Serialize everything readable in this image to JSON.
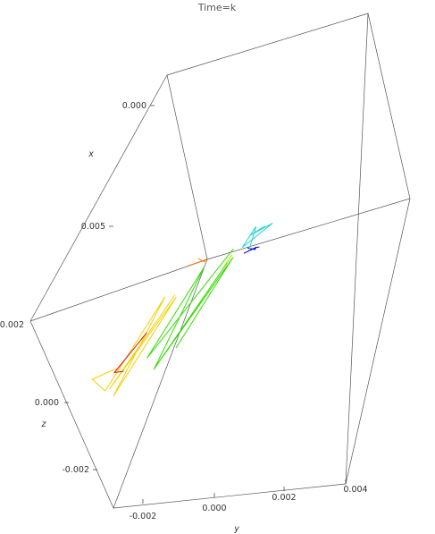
{
  "chart_data": {
    "type": "line",
    "title": "Time=k",
    "axes": {
      "x": {
        "label": "x",
        "ticks": [
          "0.000",
          "0.005"
        ]
      },
      "y": {
        "label": "y",
        "ticks": [
          "-0.002",
          "0.000",
          "0.002",
          "0.004"
        ]
      },
      "z": {
        "label": "z",
        "ticks": [
          "0.002",
          "0.000",
          "-0.002"
        ]
      }
    },
    "grid": false,
    "legend": "none",
    "colors": [
      "#0000cc",
      "#1f6fe0",
      "#22d4d4",
      "#00e070",
      "#33dd00",
      "#aadd00",
      "#f0d000",
      "#ff7a00",
      "#e01010"
    ],
    "series": [
      {
        "color": "#0000cc",
        "points": [
          [
            0.004,
            0.002,
            0.0
          ],
          [
            0.0042,
            0.0022,
            0.0001
          ],
          [
            0.0038,
            0.0021,
            0.0002
          ],
          [
            0.0041,
            0.0019,
            0.0001
          ],
          [
            0.0043,
            0.0023,
            0.0
          ],
          [
            0.0039,
            0.0022,
            0.0002
          ]
        ]
      },
      {
        "color": "#22d4d4",
        "points": [
          [
            0.002,
            0.0018,
            0.0003
          ],
          [
            0.0025,
            0.0016,
            0.0002
          ],
          [
            0.0018,
            0.0019,
            0.0004
          ],
          [
            0.003,
            0.0015,
            0.0003
          ],
          [
            0.0022,
            0.0017,
            0.0001
          ],
          [
            0.0035,
            0.0018,
            0.0003
          ]
        ]
      },
      {
        "color": "#33dd00",
        "points": [
          [
            0.001,
            0.0005,
            0.001
          ],
          [
            0.006,
            -0.0005,
            0.0015
          ],
          [
            0.002,
            0.0001,
            0.0008
          ],
          [
            0.0065,
            -0.0003,
            0.0018
          ],
          [
            0.0015,
            0.0004,
            0.0012
          ],
          [
            0.007,
            -0.0001,
            0.0016
          ],
          [
            0.003,
            0.0012,
            0.0005
          ],
          [
            0.0075,
            0.0008,
            0.001
          ]
        ]
      },
      {
        "color": "#aadd00",
        "points": [
          [
            0.003,
            0.0012,
            0.0004
          ],
          [
            0.0034,
            0.001,
            0.0006
          ],
          [
            0.0028,
            0.0011,
            0.0005
          ],
          [
            0.0033,
            0.0013,
            0.0003
          ]
        ]
      },
      {
        "color": "#f0d000",
        "points": [
          [
            0.0015,
            -0.001,
            0.0015
          ],
          [
            0.007,
            -0.0012,
            0.0016
          ],
          [
            0.002,
            -0.0008,
            0.0014
          ],
          [
            0.0075,
            -0.001,
            0.0017
          ],
          [
            0.0018,
            -0.0011,
            0.0013
          ],
          [
            0.008,
            -0.0009,
            0.0012
          ],
          [
            0.009,
            -0.0006,
            0.0002
          ],
          [
            0.0085,
            -0.0002,
            0.0004
          ]
        ]
      },
      {
        "color": "#ff7a00",
        "points": [
          [
            0.0025,
            0.0003,
            0.0002
          ],
          [
            0.0028,
            0.0005,
            0.0003
          ],
          [
            0.0024,
            0.0004,
            0.0004
          ],
          [
            0.003,
            0.0002,
            0.0001
          ]
        ]
      },
      {
        "color": "#e01010",
        "points": [
          [
            0.0045,
            -0.0008,
            0.0012
          ],
          [
            0.007,
            -0.0009,
            0.0011
          ],
          [
            0.0075,
            -0.0005,
            0.001
          ]
        ]
      }
    ]
  }
}
